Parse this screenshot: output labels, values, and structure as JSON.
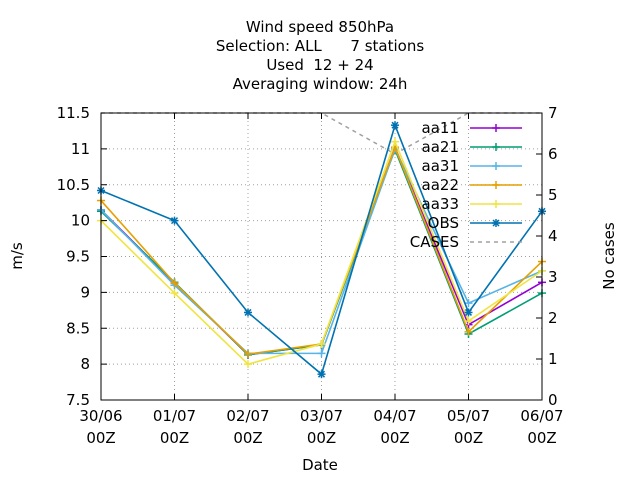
{
  "chart_data": {
    "type": "line",
    "title": [
      "Wind speed 850hPa",
      "Selection: ALL      7 stations",
      "Used  12 + 24",
      "Averaging window: 24h"
    ],
    "xlabel": "Date",
    "ylabel": "m/s",
    "y2label": "No cases",
    "categories": [
      {
        "line1": "30/06",
        "line2": "00Z"
      },
      {
        "line1": "01/07",
        "line2": "00Z"
      },
      {
        "line1": "02/07",
        "line2": "00Z"
      },
      {
        "line1": "03/07",
        "line2": "00Z"
      },
      {
        "line1": "04/07",
        "line2": "00Z"
      },
      {
        "line1": "05/07",
        "line2": "00Z"
      },
      {
        "line1": "06/07",
        "line2": "00Z"
      }
    ],
    "ylim": [
      7.5,
      11.5
    ],
    "y2lim": [
      0,
      7
    ],
    "yticks": [
      "7.5",
      "8",
      "8.5",
      "9",
      "9.5",
      "10",
      "10.5",
      "11",
      "11.5"
    ],
    "y2ticks": [
      "0",
      "1",
      "2",
      "3",
      "4",
      "5",
      "6",
      "7"
    ],
    "grid": true,
    "legend": "top-right inside",
    "series": [
      {
        "name": "aa11",
        "color": "#9400d3",
        "marker": "plus",
        "values": [
          10.15,
          9.13,
          8.13,
          8.27,
          11.02,
          8.55,
          9.14
        ]
      },
      {
        "name": "aa21",
        "color": "#009e73",
        "marker": "plus",
        "values": [
          10.13,
          9.14,
          8.13,
          8.27,
          10.99,
          8.42,
          8.99
        ]
      },
      {
        "name": "aa31",
        "color": "#56b4e9",
        "marker": "plus",
        "values": [
          10.15,
          9.1,
          8.15,
          8.15,
          11.0,
          8.85,
          9.3
        ]
      },
      {
        "name": "aa22",
        "color": "#e69f00",
        "marker": "plus",
        "values": [
          10.28,
          9.13,
          8.14,
          8.28,
          11.02,
          8.45,
          9.43
        ]
      },
      {
        "name": "aa33",
        "color": "#f0e442",
        "marker": "plus",
        "values": [
          10.0,
          8.99,
          8.0,
          8.28,
          11.1,
          8.6,
          9.3
        ]
      },
      {
        "name": "OBS",
        "color": "#0072b2",
        "marker": "star",
        "values": [
          10.42,
          10.0,
          8.72,
          7.86,
          11.33,
          8.72,
          10.13
        ]
      }
    ],
    "cases": {
      "name": "CASES",
      "color": "#a0a0a0",
      "axis": "right",
      "values": [
        7,
        7,
        7,
        7,
        6,
        7,
        7
      ]
    }
  }
}
